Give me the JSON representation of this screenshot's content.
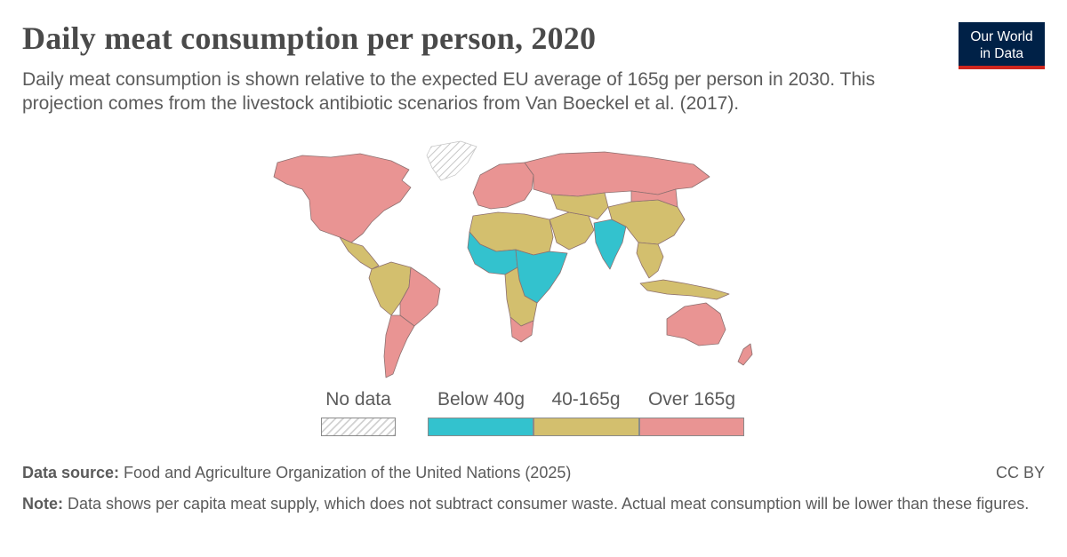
{
  "header": {
    "title": "Daily meat consumption per person, 2020",
    "subtitle": "Daily meat consumption is shown relative to the expected EU average of 165g per person in 2030. This projection comes from the livestock antibiotic scenarios from Van Boeckel et al. (2017)."
  },
  "logo": {
    "line1": "Our World",
    "line2": "in Data"
  },
  "colors": {
    "below": "#33c2ce",
    "mid": "#d3bf6e",
    "over": "#e99493",
    "nodata": "#e6e6e6",
    "border": "#8d7070"
  },
  "legend": {
    "nodata": "No data",
    "items": [
      {
        "label": "Below 40g",
        "color": "#33c2ce"
      },
      {
        "label": "40-165g",
        "color": "#d3bf6e"
      },
      {
        "label": "Over 165g",
        "color": "#e99493"
      }
    ]
  },
  "map_regions": [
    {
      "name": "North America",
      "category": "over"
    },
    {
      "name": "Greenland",
      "category": "nodata"
    },
    {
      "name": "Central America",
      "category": "mid"
    },
    {
      "name": "South America (north)",
      "category": "mid"
    },
    {
      "name": "Brazil",
      "category": "over"
    },
    {
      "name": "Southern Cone",
      "category": "over"
    },
    {
      "name": "Europe",
      "category": "over"
    },
    {
      "name": "Russia",
      "category": "over"
    },
    {
      "name": "North Africa",
      "category": "mid"
    },
    {
      "name": "West Africa",
      "category": "below"
    },
    {
      "name": "East Africa",
      "category": "below"
    },
    {
      "name": "Southern Africa",
      "category": "mid"
    },
    {
      "name": "South Africa",
      "category": "over"
    },
    {
      "name": "Middle East",
      "category": "mid"
    },
    {
      "name": "Central Asia",
      "category": "mid"
    },
    {
      "name": "India",
      "category": "below"
    },
    {
      "name": "China",
      "category": "mid"
    },
    {
      "name": "Mongolia",
      "category": "over"
    },
    {
      "name": "Southeast Asia",
      "category": "mid"
    },
    {
      "name": "Indonesia",
      "category": "mid"
    },
    {
      "name": "Australia",
      "category": "over"
    },
    {
      "name": "New Zealand",
      "category": "over"
    }
  ],
  "footer": {
    "source_label": "Data source:",
    "source_text": " Food and Agriculture Organization of the United Nations (2025)",
    "license": "CC BY",
    "note_label": "Note:",
    "note_text": " Data shows per capita meat supply, which does not subtract consumer waste. Actual meat consumption will be lower than these figures."
  }
}
